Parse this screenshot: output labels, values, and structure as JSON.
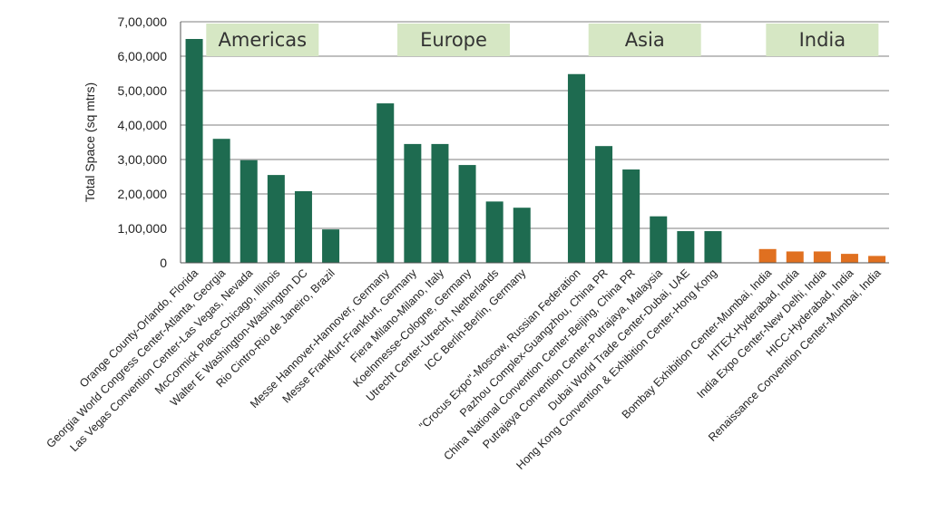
{
  "chart_data": {
    "type": "bar",
    "ylabel": "Total Space (sq mtrs)",
    "xlabel": "",
    "ylim": [
      0,
      700000
    ],
    "ytick_values": [
      0,
      100000,
      200000,
      300000,
      400000,
      500000,
      600000,
      700000
    ],
    "ytick_labels": [
      "0",
      "1,00,000",
      "2,00,000",
      "3,00,000",
      "4,00,000",
      "5,00,000",
      "6,00,000",
      "7,00,000"
    ],
    "grid": true,
    "colors": {
      "default": "#1e6b50",
      "India": "#e07020",
      "region_box": "#d6e7c4"
    },
    "groups": [
      {
        "region": "Americas",
        "categories": [
          "Orange County-Orlando, Florida",
          "Georgia World Congress Center-Atlanta, Georgia",
          "Las Vegas Convention Center-Las Vegas, Nevada",
          "McCormick Place-Chicago, Illinois",
          "Walter E Washington-Washington DC",
          "Rio Cintro-Rio de Janeiro, Brazil"
        ],
        "values": [
          650000,
          360000,
          298000,
          255000,
          208000,
          97000
        ]
      },
      {
        "region": "Europe",
        "categories": [
          "Messe Hannover-Hannover, Germany",
          "Messe Frankfurt-Frankfurt, Germany",
          "Fiera Milano-Milano, Italy",
          "Koelnmesse-Cologne, Germany",
          "Utrecht Center-Utrecht, Netherlands",
          "ICC Berlin-Berlin, Germany"
        ],
        "values": [
          463000,
          345000,
          345000,
          284000,
          178000,
          160000
        ]
      },
      {
        "region": "Asia",
        "categories": [
          "\"Crocus Expo\"-Moscow, Russian Federation",
          "Pazhou Complex-Guangzhou, China PR",
          "China National Convention Center-Beijing, China PR",
          "Putrajaya Convention Center-Putrajaya, Malaysia",
          "Dubai World Trade Center-Dubai, UAE",
          "Hong Kong Convention & Exhibition Center-Hong Kong"
        ],
        "values": [
          548000,
          339000,
          271000,
          135000,
          92000,
          92000
        ]
      },
      {
        "region": "India",
        "categories": [
          "Bombay Exhibition Center-Mumbai, India",
          "HITEX-Hyderabad, India",
          "India Expo Center-New Delhi, India",
          "HICC-Hyderabad, India",
          "Renaissance Convention Center-Mumbai, India"
        ],
        "values": [
          40000,
          33000,
          33000,
          26000,
          20000
        ]
      }
    ]
  }
}
